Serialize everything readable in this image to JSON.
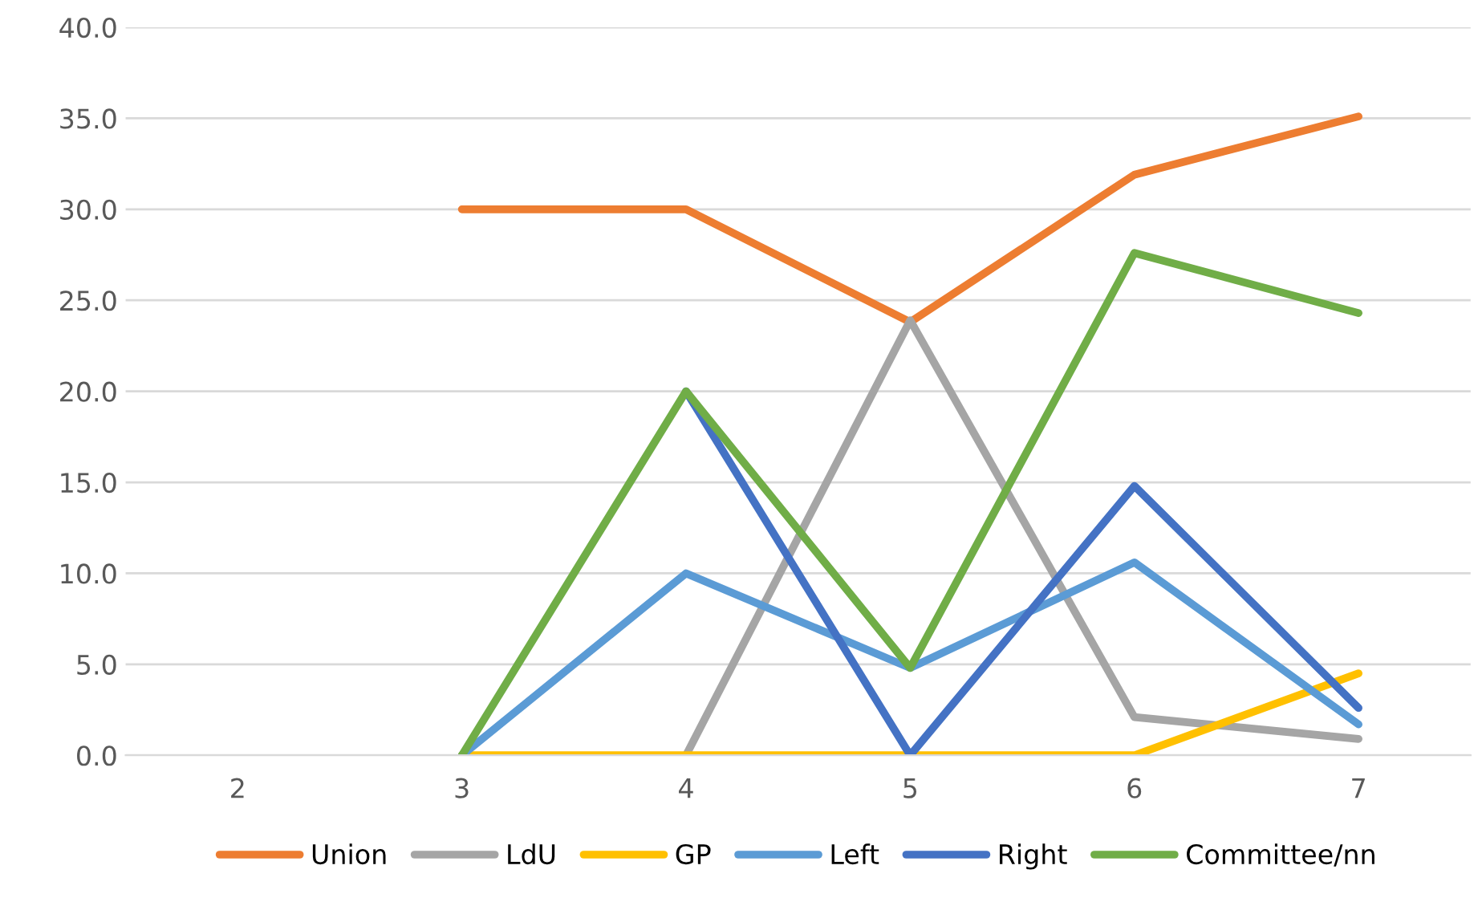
{
  "chart_data": {
    "type": "line",
    "categories": [
      "2",
      "3",
      "4",
      "5",
      "6",
      "7"
    ],
    "series": [
      {
        "name": "Union",
        "color": "#ed7d31",
        "values": [
          null,
          30.0,
          30.0,
          23.8,
          31.9,
          35.1
        ]
      },
      {
        "name": "LdU",
        "color": "#a5a5a5",
        "values": [
          null,
          null,
          0.0,
          23.9,
          2.1,
          0.9
        ]
      },
      {
        "name": "GP",
        "color": "#ffc000",
        "values": [
          null,
          0.0,
          0.0,
          0.0,
          0.0,
          4.5
        ]
      },
      {
        "name": "Left",
        "color": "#5b9bd5",
        "values": [
          null,
          0.0,
          10.0,
          4.8,
          10.6,
          1.7
        ]
      },
      {
        "name": "Right",
        "color": "#4472c4",
        "values": [
          null,
          null,
          20.0,
          0.0,
          14.8,
          2.6
        ]
      },
      {
        "name": "Committee/nn",
        "color": "#70ad47",
        "values": [
          null,
          0.0,
          20.0,
          4.8,
          27.6,
          24.3
        ]
      }
    ],
    "ylim": [
      0,
      40
    ],
    "yticks": [
      {
        "value": 0,
        "label": "0.0"
      },
      {
        "value": 5,
        "label": "5.0"
      },
      {
        "value": 10,
        "label": "10.0"
      },
      {
        "value": 15,
        "label": "15.0"
      },
      {
        "value": 20,
        "label": "20.0"
      },
      {
        "value": 25,
        "label": "25.0"
      },
      {
        "value": 30,
        "label": "30.0"
      },
      {
        "value": 35,
        "label": "35.0"
      },
      {
        "value": 40,
        "label": "40.0"
      }
    ],
    "grid": "y",
    "legend": "bottom",
    "marker": "none",
    "line_style": "solid"
  }
}
